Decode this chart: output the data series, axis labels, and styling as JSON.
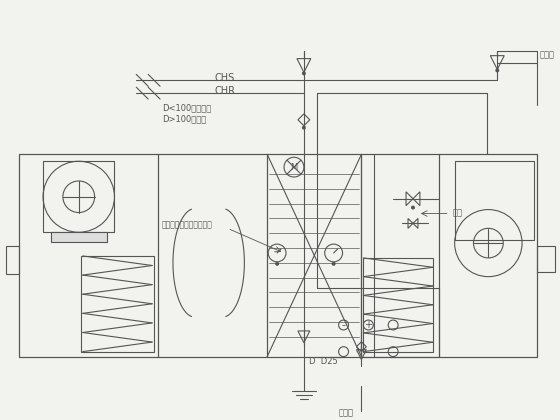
{
  "bg_color": "#f2f2ee",
  "line_color": "#555555",
  "label_CHS": "CHS",
  "label_CHR": "CHR",
  "label_D100_small": "D<100用截止阀",
  "label_D100_big": "D>100用蝶阀",
  "label_valve": "动态平衡比例积分调节阀",
  "label_humidifier": "加湿器",
  "label_drain": "排水孔",
  "label_DD25": "D  D25",
  "label_valve2": "阀阀"
}
